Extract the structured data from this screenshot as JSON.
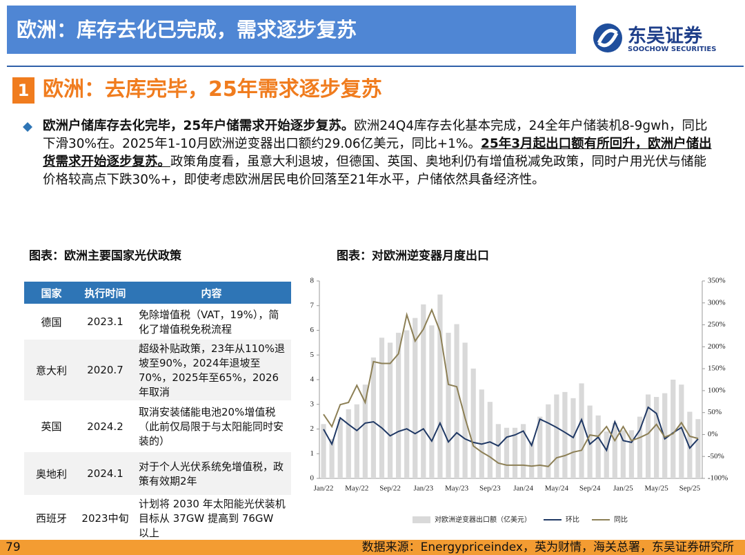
{
  "header": {
    "title": "欧洲：库存去化已完成，需求逐步复苏",
    "logo_cn": "东吴证券",
    "logo_en": "SOOCHOW SECURITIES"
  },
  "section": {
    "number": "1",
    "title": "欧洲：去库完毕，25年需求逐步复苏"
  },
  "paragraph": [
    {
      "text": "欧洲户储库存去化完毕，25年户储需求开始逐步复苏。",
      "bold": true,
      "underline": false
    },
    {
      "text": "欧洲24Q4库存去化基本完成，24全年户储装机8-9gwh，同比下滑30%在。2025年1-10月欧洲逆变器出口额约29.06亿美元，同比+1%。",
      "bold": false,
      "underline": false
    },
    {
      "text": "25年3月起出口额有所回升，欧洲户储出货需求开始逐步复苏。",
      "bold": true,
      "underline": true
    },
    {
      "text": "政策角度看，虽意大利退坡，但德国、英国、奥地利仍有增值税减免政策，同时户用光伏与储能价格较高点下跌30%+，即使考虑欧洲居民电价回落至21年水平，户储依然具备经济性。",
      "bold": false,
      "underline": false
    }
  ],
  "table": {
    "title": "图表：欧洲主要国家光伏政策",
    "columns": [
      "国家",
      "执行时间",
      "内容"
    ],
    "rows": [
      [
        "德国",
        "2023.1",
        "免除增值税（VAT，19%），简化了增值税免税流程"
      ],
      [
        "意大利",
        "2020.7",
        "超级补贴政策，23年从110%退坡至90%，2024年退坡至70%，2025年至65%，2026年取消"
      ],
      [
        "英国",
        "2024.2",
        "取消安装储能电池20%增值税（此前仅局限于与太阳能同时安装的）"
      ],
      [
        "奥地利",
        "2024.1",
        "对于个人光伏系统免增值税，政策有效期2年"
      ],
      [
        "西班牙",
        "2023中旬",
        "计划将 2030 年太阳能光伏装机目标从 37GW 提高到 76GW 以上"
      ]
    ]
  },
  "chart_data": {
    "type": "combo",
    "title": "图表：对欧洲逆变器月度出口",
    "categories": [
      "Jan/22",
      null,
      null,
      null,
      "May/22",
      null,
      null,
      null,
      "Sep/22",
      null,
      null,
      null,
      "Jan/23",
      null,
      null,
      null,
      "May/23",
      null,
      null,
      null,
      "Sep/23",
      null,
      null,
      null,
      "Jan/24",
      null,
      null,
      null,
      "May/24",
      null,
      null,
      null,
      "Sep/24",
      null,
      null,
      null,
      "Jan/25",
      null,
      null,
      null,
      "May/25",
      null,
      null,
      null,
      "Sep/25",
      null
    ],
    "series": [
      {
        "name": "对欧洲逆变器出口额（亿美元）",
        "type": "bar",
        "color": "#d9d9d9",
        "values": [
          2.2,
          1.6,
          2.4,
          2.8,
          3.0,
          3.8,
          4.9,
          5.7,
          5.5,
          5.9,
          6.0,
          6.5,
          7.05,
          6.2,
          7.45,
          5.9,
          6.25,
          5.5,
          4.45,
          3.6,
          3.1,
          2.2,
          2.05,
          2.05,
          2.2,
          1.5,
          2.5,
          3.0,
          3.4,
          3.5,
          3.25,
          3.85,
          2.95,
          2.55,
          1.9,
          2.25,
          1.95,
          1.95,
          2.5,
          3.4,
          3.3,
          3.45,
          4.0,
          3.8,
          2.7,
          2.4
        ]
      },
      {
        "name": "环比",
        "type": "line",
        "axis": "y2",
        "color": "#1f3864",
        "values": [
          12,
          -22,
          38,
          23,
          9,
          26,
          29,
          15,
          -3,
          7,
          13,
          2,
          13,
          -15,
          26,
          -17,
          4,
          -10,
          -18,
          -22,
          -17,
          -26,
          -6,
          -1,
          8,
          -25,
          35,
          26,
          16,
          5,
          -7,
          34,
          -22,
          -6,
          -36,
          29,
          -14,
          -18,
          10,
          62,
          48,
          -10,
          4,
          16,
          -31,
          -10
        ]
      },
      {
        "name": "同比",
        "type": "line",
        "axis": "y2",
        "color": "#8c7f55",
        "values": [
          46,
          18,
          68,
          73,
          112,
          73,
          166,
          162,
          162,
          184,
          273,
          213,
          240,
          284,
          235,
          114,
          109,
          38,
          -26,
          -40,
          -51,
          -65,
          -70,
          -70,
          -70,
          -72,
          -70,
          -73,
          -53,
          -48,
          -40,
          -36,
          -1,
          -4,
          18,
          -14,
          18,
          -14,
          -7,
          2,
          23,
          -6,
          2,
          27,
          -4,
          -9
        ]
      }
    ],
    "ylim": [
      0,
      8
    ],
    "yticks": [
      0,
      1,
      2,
      3,
      4,
      5,
      6,
      7,
      8
    ],
    "y2lim": [
      -100,
      350
    ],
    "y2ticks": [
      {
        "value": -100,
        "label": "-100%"
      },
      {
        "value": -50,
        "label": "-50%"
      },
      {
        "value": 0,
        "label": "0%"
      },
      {
        "value": 50,
        "label": "50%"
      },
      {
        "value": 100,
        "label": "100%"
      },
      {
        "value": 150,
        "label": "150%"
      },
      {
        "value": 200,
        "label": "200%"
      },
      {
        "value": 250,
        "label": "250%"
      },
      {
        "value": 300,
        "label": "300%"
      },
      {
        "value": 350,
        "label": "350%"
      }
    ],
    "grid": false,
    "legend": "bottom"
  },
  "footer": {
    "page": "79",
    "source": "数据来源：Energypriceindex，英为财情，海关总署，东吴证券研究所"
  }
}
